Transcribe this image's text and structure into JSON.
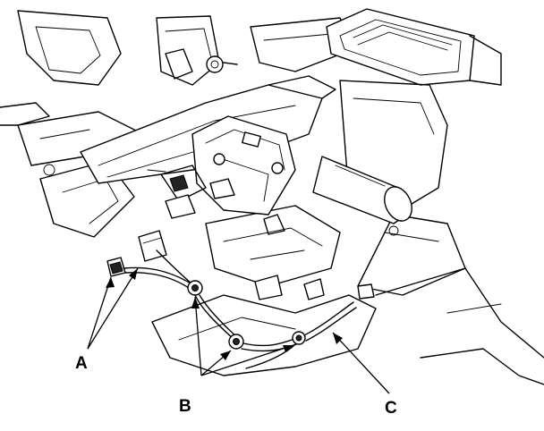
{
  "callouts": {
    "a": "A",
    "b": "B",
    "c": "C"
  }
}
